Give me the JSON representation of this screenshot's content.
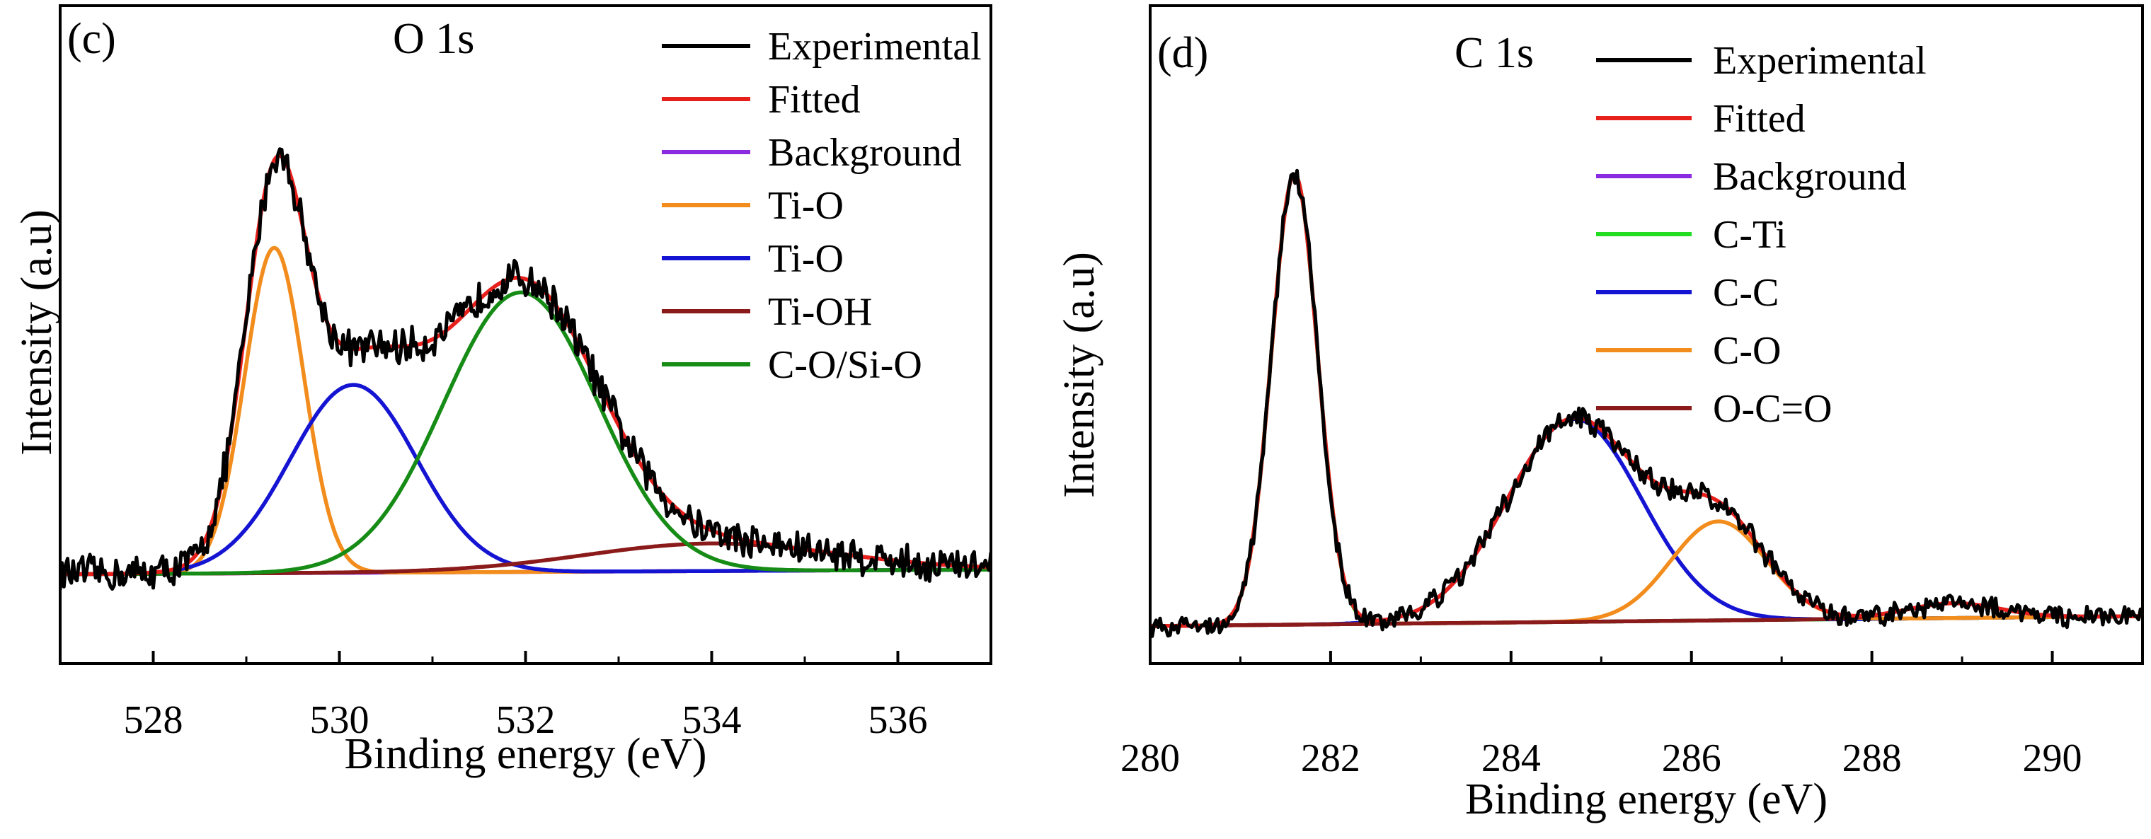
{
  "chart_data": [
    {
      "type": "line",
      "panel_label": "(c)",
      "title": "O 1s",
      "xlabel": "Binding energy (eV)",
      "ylabel": "Intensity (a.u)",
      "xlim": [
        527.0,
        537.0
      ],
      "ylim": [
        -0.05,
        1.05
      ],
      "x_ticks": [
        528,
        530,
        532,
        534,
        536
      ],
      "x_tick_labels": [
        "528",
        "530",
        "532",
        "534",
        "536"
      ],
      "noise_amplitude": 0.045,
      "background": {
        "start": 0.04,
        "end": 0.05
      },
      "peaks": [
        {
          "name": "Ti-O",
          "center": 529.3,
          "fwhm": 0.75,
          "height": 0.71
        },
        {
          "name": "Ti-O",
          "center": 530.15,
          "fwhm": 1.6,
          "height": 0.41
        },
        {
          "name": "Ti-OH",
          "center": 534.0,
          "fwhm": 3.2,
          "height": 0.06
        },
        {
          "name": "C-O/Si-O",
          "center": 531.95,
          "fwhm": 1.95,
          "height": 0.61
        }
      ],
      "series": [
        {
          "name": "Experimental",
          "role": "experimental",
          "color": "#000000"
        },
        {
          "name": "Fitted",
          "role": "fitted",
          "color": "#e8201c"
        },
        {
          "name": "Background",
          "role": "background",
          "color": "#8a2be2"
        },
        {
          "name": "Ti-O",
          "role": "peak",
          "peak_index": 0,
          "color": "#f28c1c"
        },
        {
          "name": "Ti-O",
          "role": "peak",
          "peak_index": 1,
          "color": "#1414d2"
        },
        {
          "name": "Ti-OH",
          "role": "peak",
          "peak_index": 2,
          "color": "#8b1a1a"
        },
        {
          "name": "C-O/Si-O",
          "role": "peak",
          "peak_index": 3,
          "color": "#168c16"
        }
      ]
    },
    {
      "type": "line",
      "panel_label": "(d)",
      "title": "C 1s",
      "xlabel": "Binding energy (eV)",
      "ylabel": "Intensity (a.u)",
      "xlim": [
        280.0,
        291.0
      ],
      "ylim": [
        -0.05,
        1.05
      ],
      "x_ticks": [
        280,
        282,
        284,
        286,
        288,
        290
      ],
      "x_tick_labels": [
        "280",
        "282",
        "284",
        "286",
        "288",
        "290"
      ],
      "noise_amplitude": 0.025,
      "background": {
        "start": 0.0,
        "end": 0.02
      },
      "peaks": [
        {
          "name": "C-Ti",
          "center": 281.6,
          "fwhm": 0.6,
          "height": 0.91
        },
        {
          "name": "C-C",
          "center": 284.7,
          "fwhm": 1.75,
          "height": 0.41
        },
        {
          "name": "C-O",
          "center": 286.3,
          "fwhm": 1.25,
          "height": 0.2
        },
        {
          "name": "O-C=O",
          "center": 288.9,
          "fwhm": 1.2,
          "height": 0.03
        }
      ],
      "series": [
        {
          "name": "Experimental",
          "role": "experimental",
          "color": "#000000"
        },
        {
          "name": "Fitted",
          "role": "fitted",
          "color": "#e8201c"
        },
        {
          "name": "Background",
          "role": "background",
          "color": "#8a2be2"
        },
        {
          "name": "C-Ti",
          "role": "peak",
          "peak_index": 0,
          "color": "#22dd22"
        },
        {
          "name": "C-C",
          "role": "peak",
          "peak_index": 1,
          "color": "#1414d2"
        },
        {
          "name": "C-O",
          "role": "peak",
          "peak_index": 2,
          "color": "#f28c1c"
        },
        {
          "name": "O-C=O",
          "role": "peak",
          "peak_index": 3,
          "color": "#8b1a1a"
        }
      ]
    }
  ]
}
